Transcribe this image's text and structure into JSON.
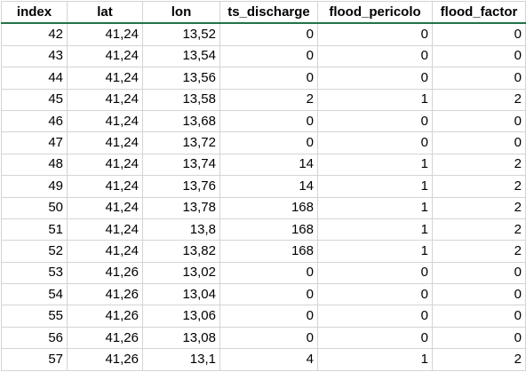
{
  "sheet": {
    "columns": [
      "index",
      "lat",
      "lon",
      "ts_discharge",
      "flood_pericolo",
      "flood_factor"
    ],
    "rows": [
      [
        "42",
        "41,24",
        "13,52",
        "0",
        "0",
        "0"
      ],
      [
        "43",
        "41,24",
        "13,54",
        "0",
        "0",
        "0"
      ],
      [
        "44",
        "41,24",
        "13,56",
        "0",
        "0",
        "0"
      ],
      [
        "45",
        "41,24",
        "13,58",
        "2",
        "1",
        "2"
      ],
      [
        "46",
        "41,24",
        "13,68",
        "0",
        "0",
        "0"
      ],
      [
        "47",
        "41,24",
        "13,72",
        "0",
        "0",
        "0"
      ],
      [
        "48",
        "41,24",
        "13,74",
        "14",
        "1",
        "2"
      ],
      [
        "49",
        "41,24",
        "13,76",
        "14",
        "1",
        "2"
      ],
      [
        "50",
        "41,24",
        "13,78",
        "168",
        "1",
        "2"
      ],
      [
        "51",
        "41,24",
        "13,8",
        "168",
        "1",
        "2"
      ],
      [
        "52",
        "41,24",
        "13,82",
        "168",
        "1",
        "2"
      ],
      [
        "53",
        "41,26",
        "13,02",
        "0",
        "0",
        "0"
      ],
      [
        "54",
        "41,26",
        "13,04",
        "0",
        "0",
        "0"
      ],
      [
        "55",
        "41,26",
        "13,06",
        "0",
        "0",
        "0"
      ],
      [
        "56",
        "41,26",
        "13,08",
        "0",
        "0",
        "0"
      ],
      [
        "57",
        "41,26",
        "13,1",
        "4",
        "1",
        "2"
      ]
    ]
  }
}
